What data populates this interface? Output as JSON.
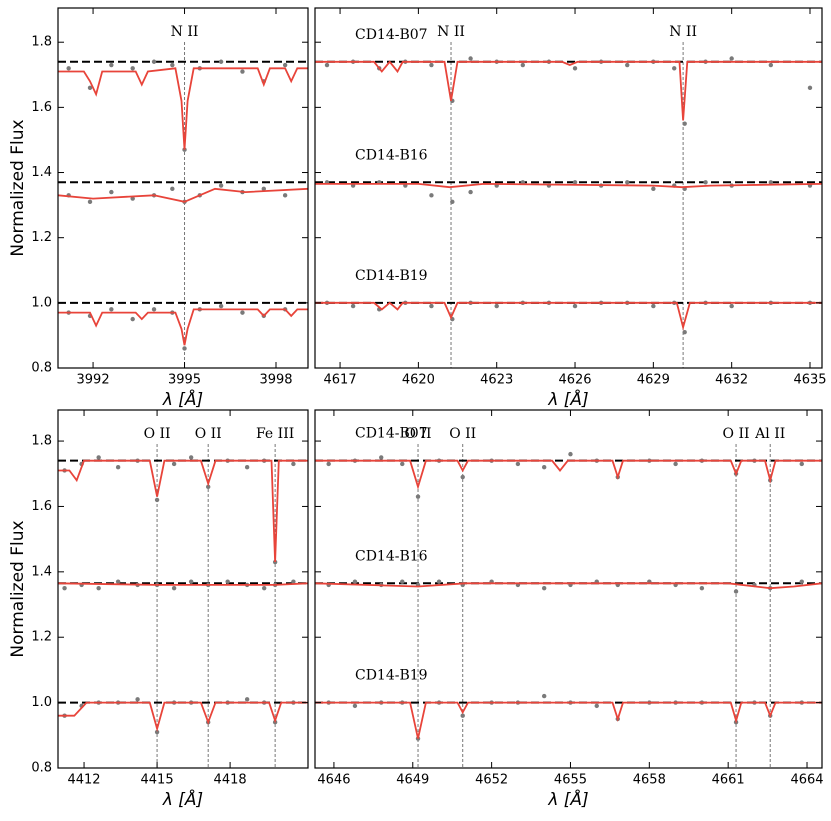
{
  "chart_data": [
    {
      "type": "spectrum",
      "xlim": [
        3990.85,
        3999.05
      ],
      "ylim": [
        0.8,
        1.905
      ],
      "xticks": [
        3992,
        3995,
        3998
      ],
      "yticks": [
        0.8,
        {
          "value": 1.0,
          "label": "1.0"
        },
        1.2,
        1.4,
        1.6,
        1.8
      ],
      "ytick_labels": true,
      "xlabel": "λ [Å]",
      "ylabel": "Normalized Flux",
      "continuum": [
        1.74,
        1.37,
        1.0
      ],
      "features": [
        {
          "x": 3995,
          "label": "N II"
        }
      ],
      "obs_color": "#7a7a7a",
      "model_color": "#e8443a",
      "obs_x": [
        3991.2,
        3991.9,
        3992.6,
        3993.3,
        3994,
        3994.6,
        3995,
        3995.5,
        3996.2,
        3996.9,
        3997.6,
        3998.3
      ],
      "observed": [
        [
          1.72,
          1.66,
          1.73,
          1.72,
          1.74,
          1.73,
          1.47,
          1.72,
          1.74,
          1.71,
          1.68,
          1.73
        ],
        [
          1.33,
          1.31,
          1.34,
          1.32,
          1.33,
          1.35,
          1.31,
          1.33,
          1.36,
          1.34,
          1.35,
          1.33
        ],
        [
          0.97,
          0.96,
          0.98,
          0.95,
          0.98,
          0.97,
          0.86,
          0.98,
          0.99,
          0.97,
          0.96,
          0.98
        ]
      ],
      "model": [
        {
          "x": [
            3990.85,
            3991.7,
            3991.9,
            3992.1,
            3992.3,
            3993.4,
            3993.6,
            3993.8,
            3994.7,
            3994.9,
            3995,
            3995.1,
            3995.3,
            3997.4,
            3997.6,
            3997.8,
            3998.3,
            3998.5,
            3998.7,
            3999.05
          ],
          "values": [
            1.71,
            1.71,
            1.68,
            1.64,
            1.71,
            1.71,
            1.67,
            1.71,
            1.72,
            1.62,
            1.47,
            1.62,
            1.72,
            1.72,
            1.67,
            1.72,
            1.72,
            1.68,
            1.72,
            1.72
          ]
        },
        {
          "x": [
            3990.85,
            3992,
            3994,
            3995,
            3996,
            3997,
            3999.05
          ],
          "values": [
            1.33,
            1.32,
            1.33,
            1.31,
            1.35,
            1.34,
            1.35
          ]
        },
        {
          "x": [
            3990.85,
            3991.9,
            3992.1,
            3992.3,
            3993.4,
            3993.6,
            3993.8,
            3994.7,
            3994.9,
            3995,
            3995.1,
            3995.3,
            3997.4,
            3997.6,
            3997.8,
            3998.3,
            3998.5,
            3998.7,
            3999.05
          ],
          "values": [
            0.97,
            0.97,
            0.93,
            0.97,
            0.97,
            0.95,
            0.97,
            0.97,
            0.92,
            0.87,
            0.92,
            0.98,
            0.98,
            0.96,
            0.98,
            0.98,
            0.96,
            0.98,
            0.98
          ]
        }
      ]
    },
    {
      "type": "spectrum",
      "xlim": [
        4616.04,
        4635.46
      ],
      "ylim": [
        0.8,
        1.905
      ],
      "xticks": [
        4617,
        4620,
        4623,
        4626,
        4629,
        4632,
        4635
      ],
      "yticks": [
        0.8,
        {
          "value": 1.0,
          "label": "1.0"
        },
        1.2,
        1.4,
        1.6,
        1.8
      ],
      "ytick_labels": false,
      "xlabel": "λ [Å]",
      "continuum": [
        1.74,
        1.37,
        1.0
      ],
      "stars": [
        "CD14-B07",
        "CD14-B16",
        "CD14-B19"
      ],
      "features": [
        {
          "x": 4621.25,
          "label": "N II"
        },
        {
          "x": 4630.14,
          "label": "N II"
        }
      ],
      "obs_color": "#7a7a7a",
      "model_color": "#e8443a",
      "obs_x": [
        4616.5,
        4617.5,
        4618.5,
        4619.5,
        4620.5,
        4621.3,
        4622,
        4623,
        4624,
        4625,
        4626,
        4627,
        4628,
        4629,
        4629.8,
        4630.2,
        4631,
        4632,
        4633.5,
        4635
      ],
      "observed": [
        [
          1.73,
          1.74,
          1.72,
          1.74,
          1.73,
          1.62,
          1.75,
          1.74,
          1.73,
          1.74,
          1.72,
          1.74,
          1.73,
          1.74,
          1.72,
          1.55,
          1.74,
          1.75,
          1.73,
          1.66
        ],
        [
          1.37,
          1.36,
          1.37,
          1.36,
          1.33,
          1.31,
          1.34,
          1.36,
          1.37,
          1.36,
          1.37,
          1.36,
          1.37,
          1.35,
          1.36,
          1.35,
          1.37,
          1.36,
          1.37,
          1.36
        ],
        [
          1.0,
          0.99,
          0.98,
          1.0,
          0.99,
          0.95,
          1.0,
          0.99,
          1.0,
          1.0,
          0.99,
          1.0,
          1.0,
          0.99,
          1.0,
          0.91,
          1.0,
          0.99,
          1.0,
          1.0
        ]
      ],
      "model": [
        {
          "x": [
            4616.04,
            4618.3,
            4618.6,
            4618.9,
            4619.2,
            4619.4,
            4621,
            4621.25,
            4621.5,
            4625.5,
            4625.8,
            4626.1,
            4630,
            4630.14,
            4630.3,
            4635.46
          ],
          "values": [
            1.74,
            1.74,
            1.71,
            1.74,
            1.71,
            1.74,
            1.74,
            1.62,
            1.74,
            1.74,
            1.73,
            1.74,
            1.74,
            1.56,
            1.74,
            1.74
          ]
        },
        {
          "x": [
            4616.04,
            4620,
            4621.2,
            4622.5,
            4629,
            4630.1,
            4631.2,
            4635.46
          ],
          "values": [
            1.365,
            1.365,
            1.355,
            1.365,
            1.36,
            1.355,
            1.36,
            1.365
          ]
        },
        {
          "x": [
            4616.04,
            4618.3,
            4618.6,
            4618.9,
            4619.2,
            4619.4,
            4621,
            4621.25,
            4621.5,
            4629.9,
            4630.14,
            4630.4,
            4635.46
          ],
          "values": [
            1.0,
            1.0,
            0.98,
            1.0,
            0.98,
            1.0,
            1.0,
            0.955,
            1.0,
            1.0,
            0.925,
            1.0,
            1.0
          ]
        }
      ]
    },
    {
      "type": "spectrum",
      "xlim": [
        4410.93,
        4421.2
      ],
      "ylim": [
        0.8,
        1.895
      ],
      "xticks": [
        4412,
        4415,
        4418
      ],
      "yticks": [
        0.8,
        {
          "value": 1.0,
          "label": "1.0"
        },
        1.2,
        1.4,
        1.6,
        1.8
      ],
      "ytick_labels": true,
      "xlabel": "λ [Å]",
      "ylabel": "Normalized Flux",
      "continuum": [
        1.74,
        1.365,
        1.0
      ],
      "features": [
        {
          "x": 4415,
          "label": "O II"
        },
        {
          "x": 4417.1,
          "label": "O II"
        },
        {
          "x": 4419.85,
          "label": "Fe III"
        }
      ],
      "obs_color": "#7a7a7a",
      "model_color": "#e8443a",
      "obs_x": [
        4411.2,
        4411.9,
        4412.6,
        4413.4,
        4414.2,
        4415,
        4415.7,
        4416.4,
        4417.1,
        4417.9,
        4418.7,
        4419.4,
        4419.85,
        4420.6
      ],
      "observed": [
        [
          1.71,
          1.73,
          1.75,
          1.72,
          1.74,
          1.62,
          1.73,
          1.75,
          1.66,
          1.74,
          1.72,
          1.74,
          1.43,
          1.73
        ],
        [
          1.35,
          1.36,
          1.35,
          1.37,
          1.36,
          1.36,
          1.35,
          1.37,
          1.36,
          1.37,
          1.36,
          1.35,
          1.36,
          1.37
        ],
        [
          0.96,
          0.99,
          1.0,
          1.0,
          1.01,
          0.91,
          1.0,
          1.0,
          0.94,
          1.0,
          1.01,
          1.0,
          0.94,
          1.0
        ]
      ],
      "model": [
        {
          "x": [
            4410.93,
            4411.4,
            4411.7,
            4412,
            4414.7,
            4415,
            4415.3,
            4416.8,
            4417.1,
            4417.4,
            4419.7,
            4419.85,
            4420,
            4421.2
          ],
          "values": [
            1.71,
            1.71,
            1.68,
            1.74,
            1.74,
            1.63,
            1.74,
            1.74,
            1.67,
            1.74,
            1.74,
            1.43,
            1.74,
            1.74
          ]
        },
        {
          "x": [
            4410.93,
            4415,
            4417.1,
            4419.85,
            4421.2
          ],
          "values": [
            1.365,
            1.36,
            1.36,
            1.36,
            1.365
          ]
        },
        {
          "x": [
            4410.93,
            4411.6,
            4412.1,
            4414.7,
            4415,
            4415.3,
            4416.8,
            4417.1,
            4417.4,
            4419.6,
            4419.85,
            4420.1,
            4421.2
          ],
          "values": [
            0.96,
            0.96,
            1.0,
            1.0,
            0.92,
            1.0,
            1.0,
            0.94,
            1.0,
            1.0,
            0.945,
            1.0,
            1.0
          ]
        }
      ]
    },
    {
      "type": "spectrum",
      "xlim": [
        4645.28,
        4664.57
      ],
      "ylim": [
        0.8,
        1.895
      ],
      "xticks": [
        4646,
        4649,
        4652,
        4655,
        4658,
        4661,
        4664
      ],
      "yticks": [
        0.8,
        {
          "value": 1.0,
          "label": "1.0"
        },
        1.2,
        1.4,
        1.6,
        1.8
      ],
      "ytick_labels": false,
      "xlabel": "λ [Å]",
      "continuum": [
        1.74,
        1.365,
        1.0
      ],
      "stars": [
        "CD14-B07",
        "CD14-B16",
        "CD14-B19"
      ],
      "features": [
        {
          "x": 4649.2,
          "label": "O II"
        },
        {
          "x": 4650.9,
          "label": "O II"
        },
        {
          "x": 4661.3,
          "label": "O II"
        },
        {
          "x": 4662.6,
          "label": "Al II"
        }
      ],
      "obs_color": "#7a7a7a",
      "model_color": "#e8443a",
      "obs_x": [
        4645.8,
        4646.8,
        4647.8,
        4648.6,
        4649.2,
        4650,
        4650.9,
        4652,
        4653,
        4654,
        4655,
        4656,
        4656.8,
        4658,
        4659,
        4660,
        4661.3,
        4662,
        4662.6,
        4663.8
      ],
      "observed": [
        [
          1.73,
          1.74,
          1.75,
          1.73,
          1.63,
          1.74,
          1.69,
          1.74,
          1.73,
          1.72,
          1.76,
          1.74,
          1.69,
          1.74,
          1.73,
          1.74,
          1.7,
          1.74,
          1.68,
          1.73
        ],
        [
          1.36,
          1.37,
          1.36,
          1.37,
          1.36,
          1.37,
          1.36,
          1.37,
          1.36,
          1.35,
          1.36,
          1.37,
          1.36,
          1.37,
          1.36,
          1.35,
          1.34,
          1.36,
          1.35,
          1.37
        ],
        [
          1.0,
          0.99,
          1.0,
          1.0,
          0.89,
          1.0,
          0.96,
          1.0,
          1.0,
          1.02,
          1.0,
          0.99,
          0.95,
          1.0,
          1.0,
          1.0,
          0.94,
          1.0,
          0.96,
          1.0
        ]
      ],
      "model": [
        {
          "x": [
            4645.28,
            4648.9,
            4649.2,
            4649.5,
            4650.7,
            4650.9,
            4651.1,
            4654.3,
            4654.6,
            4654.9,
            4656.6,
            4656.8,
            4657,
            4661.1,
            4661.3,
            4661.5,
            4662.4,
            4662.6,
            4662.8,
            4664.57
          ],
          "values": [
            1.74,
            1.74,
            1.66,
            1.74,
            1.74,
            1.71,
            1.74,
            1.74,
            1.71,
            1.74,
            1.74,
            1.69,
            1.74,
            1.74,
            1.7,
            1.74,
            1.74,
            1.68,
            1.74,
            1.74
          ]
        },
        {
          "x": [
            4645.28,
            4649.2,
            4651,
            4661,
            4662.6,
            4663.5,
            4664.57
          ],
          "values": [
            1.365,
            1.355,
            1.365,
            1.365,
            1.35,
            1.355,
            1.365
          ]
        },
        {
          "x": [
            4645.28,
            4648.9,
            4649.2,
            4649.5,
            4650.7,
            4650.9,
            4651.1,
            4656.6,
            4656.8,
            4657,
            4661.1,
            4661.3,
            4661.5,
            4662.4,
            4662.6,
            4662.8,
            4664.57
          ],
          "values": [
            1.0,
            1.0,
            0.89,
            1.0,
            1.0,
            0.97,
            1.0,
            1.0,
            0.95,
            1.0,
            1.0,
            0.945,
            1.0,
            1.0,
            0.96,
            1.0,
            1.0
          ]
        }
      ]
    }
  ]
}
